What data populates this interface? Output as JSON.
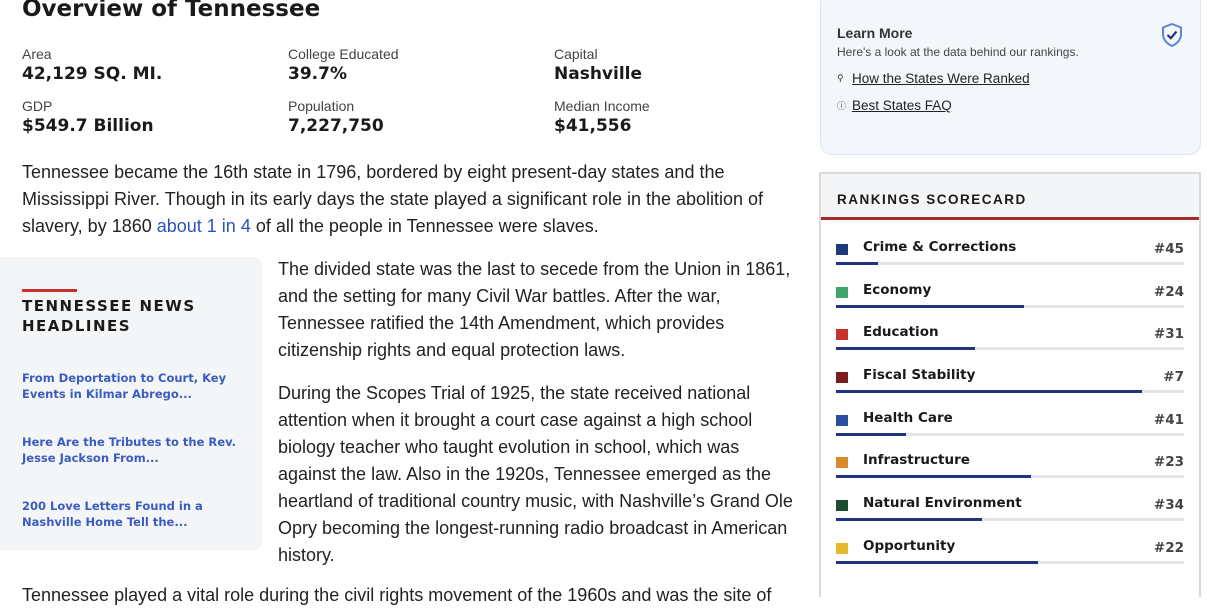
{
  "title": "Overview of Tennessee",
  "stats": [
    {
      "label": "Area",
      "value": "42,129 SQ. MI."
    },
    {
      "label": "College Educated",
      "value": "39.7%"
    },
    {
      "label": "Capital",
      "value": "Nashville"
    },
    {
      "label": "GDP",
      "value": "$549.7 Billion"
    },
    {
      "label": "Population",
      "value": "7,227,750"
    },
    {
      "label": "Median Income",
      "value": "$41,556"
    }
  ],
  "body": {
    "p1_a": "Tennessee became the 16th state in 1796, bordered by eight present-day states and the Mississippi River. Though in its early days the state played a significant role in the abolition of slavery, by 1860 ",
    "p1_link": "about 1 in 4",
    "p1_b": " of all the people in Tennessee were slaves.",
    "p2": "The divided state was the last to secede from the Union in 1861, and the setting for many Civil War battles. After the war, Tennessee ratified the 14th Amendment, which provides citizenship rights and equal protection laws.",
    "p3": "During the Scopes Trial of 1925, the state received national attention when it brought a court case against a high school biology teacher who taught evolution in school, which was against the law. Also in the 1920s, Tennessee emerged as the heartland of traditional country music, with Nashville’s Grand Ole Opry becoming the longest-running radio broadcast in American history.",
    "p4": "Tennessee played a vital role during the civil rights movement of the 1960s and was the site of"
  },
  "news": {
    "title": "TENNESSEE NEWS HEADLINES",
    "items": [
      "From Deportation to Court, Key Events in Kilmar Abrego...",
      "Here Are the Tributes to the Rev. Jesse Jackson From...",
      "200 Love Letters Found in a Nashville Home Tell the..."
    ]
  },
  "learn_more": {
    "title": "Learn More",
    "subtitle": "Here's a look at the data behind our rankings.",
    "links": [
      {
        "icon": "search-icon",
        "label": "How the States Were Ranked"
      },
      {
        "icon": "question-circle-icon",
        "label": "Best States FAQ"
      }
    ],
    "badge_icon": "shield-check-icon"
  },
  "scorecard": {
    "title": "RANKINGS SCORECARD",
    "rows": [
      {
        "label": "Crime & Corrections",
        "rank": "#45",
        "color": "#1f3a7a",
        "fill_pct": 12
      },
      {
        "label": "Economy",
        "rank": "#24",
        "color": "#3fa56b",
        "fill_pct": 54
      },
      {
        "label": "Education",
        "rank": "#31",
        "color": "#c8302c",
        "fill_pct": 40
      },
      {
        "label": "Fiscal Stability",
        "rank": "#7",
        "color": "#7a1c1c",
        "fill_pct": 88
      },
      {
        "label": "Health Care",
        "rank": "#41",
        "color": "#2a4ea0",
        "fill_pct": 20
      },
      {
        "label": "Infrastructure",
        "rank": "#23",
        "color": "#d98a2b",
        "fill_pct": 56
      },
      {
        "label": "Natural Environment",
        "rank": "#34",
        "color": "#1d4d2e",
        "fill_pct": 42
      },
      {
        "label": "Opportunity",
        "rank": "#22",
        "color": "#e6b92a",
        "fill_pct": 58
      }
    ]
  }
}
